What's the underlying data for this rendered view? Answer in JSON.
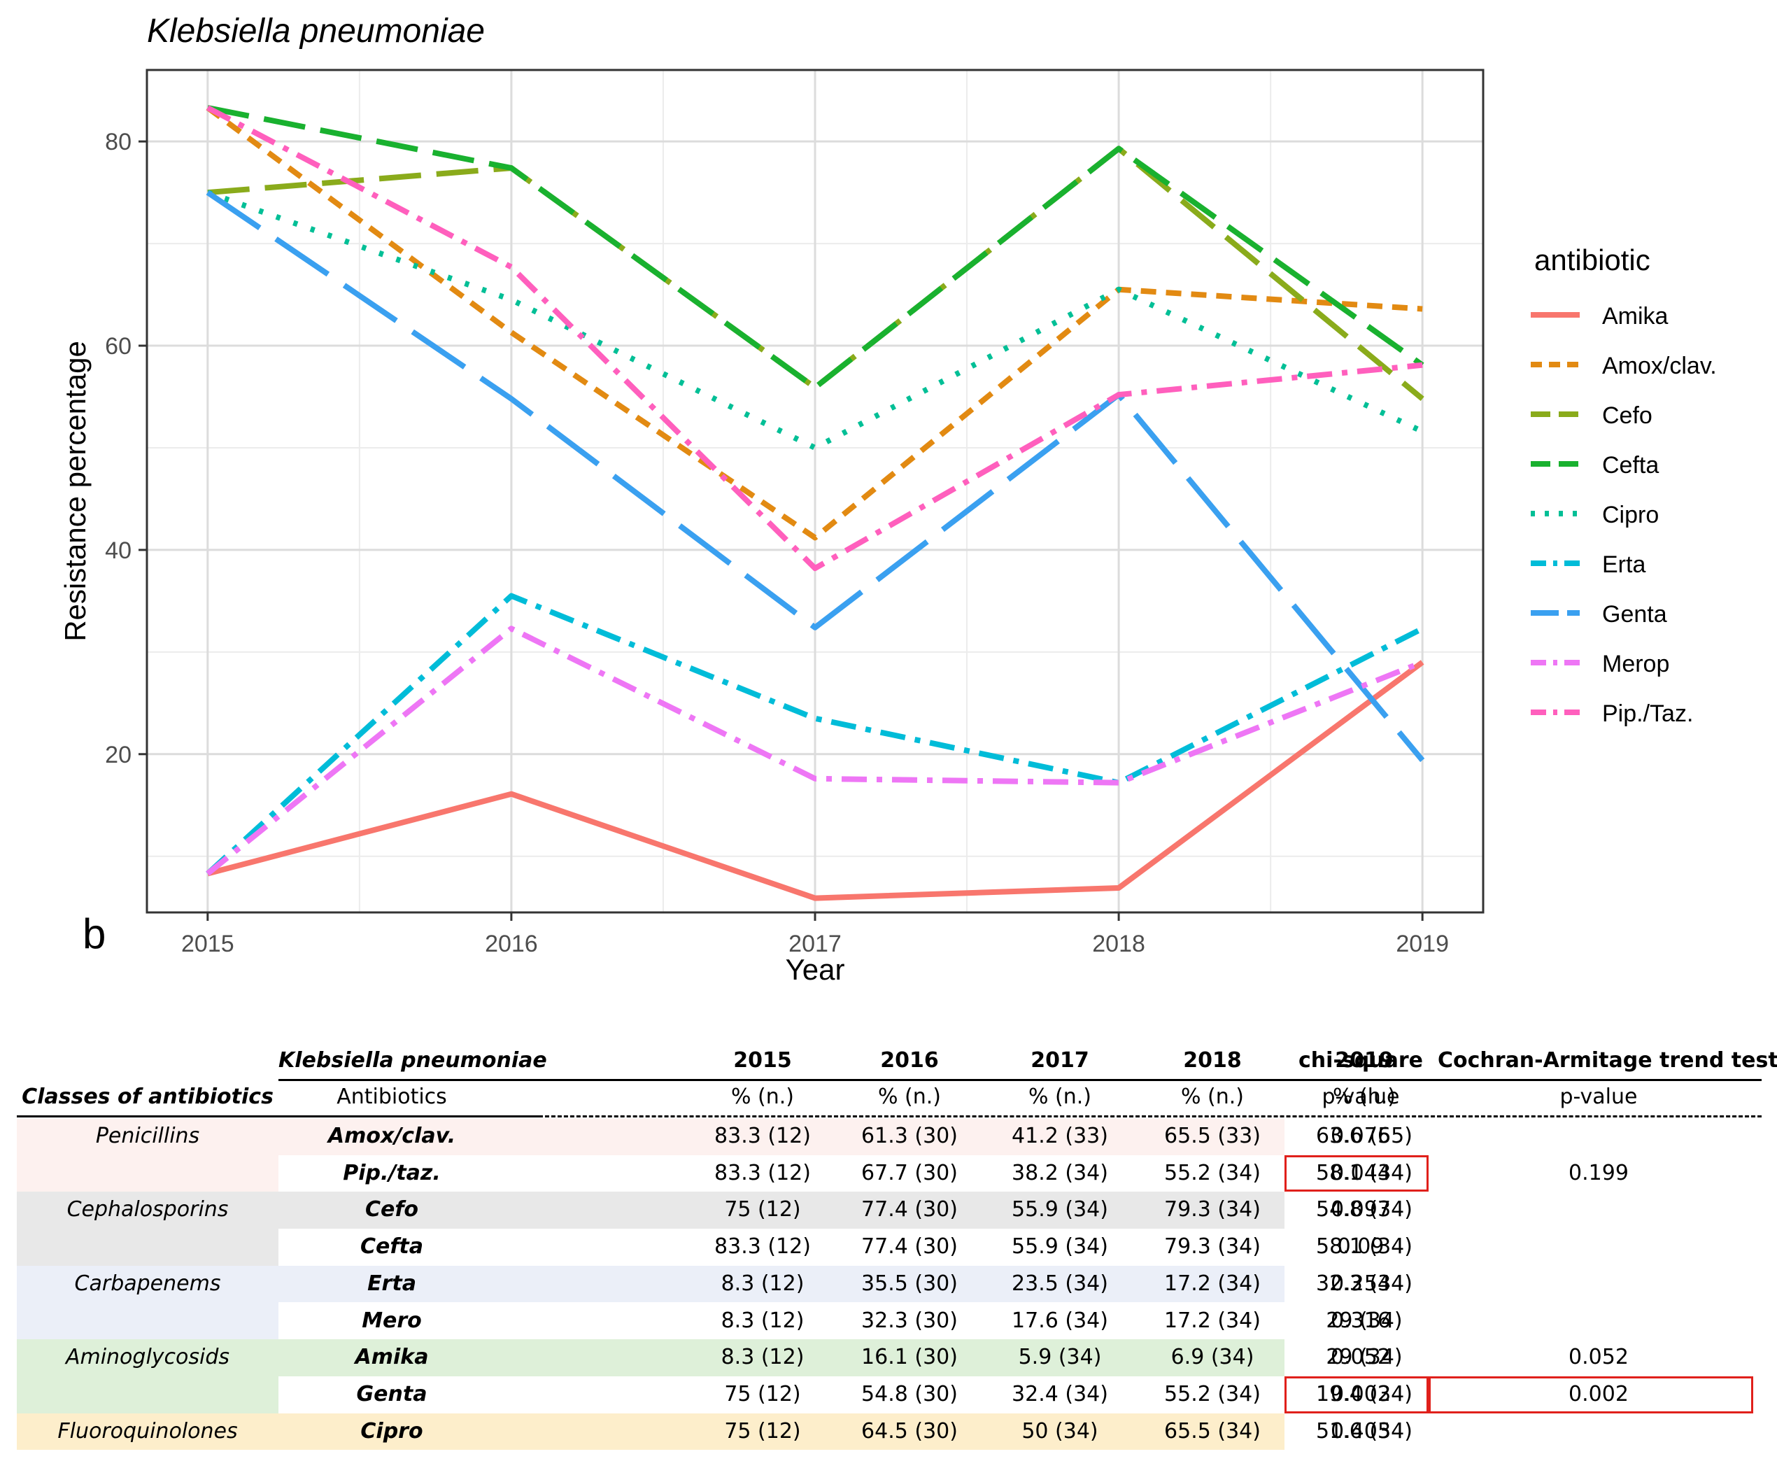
{
  "chart_data": {
    "type": "line",
    "title": "Klebsiella pneumoniae",
    "xlabel": "Year",
    "ylabel": "Resistance percentage",
    "x": [
      2015,
      2016,
      2017,
      2018,
      2019
    ],
    "xlim": [
      2014.8,
      2019.2
    ],
    "ylim": [
      4.5,
      87
    ],
    "yticks": [
      20,
      40,
      60,
      80
    ],
    "grid": true,
    "legend_title": "antibiotic",
    "legend_position": "right",
    "series": [
      {
        "name": "Amika",
        "values": [
          8.3,
          16.1,
          5.9,
          6.9,
          29
        ],
        "color": "#f8766d",
        "dash": "solid"
      },
      {
        "name": "Amox/clav.",
        "values": [
          83.3,
          61.3,
          41.2,
          65.5,
          63.6
        ],
        "color": "#e28a12",
        "dash": "short"
      },
      {
        "name": "Cefo",
        "values": [
          75,
          77.4,
          55.9,
          79.3,
          54.8
        ],
        "color": "#8aab1b",
        "dash": "long"
      },
      {
        "name": "Cefta",
        "values": [
          83.3,
          77.4,
          55.9,
          79.3,
          58.1
        ],
        "color": "#19b12f",
        "dash": "long"
      },
      {
        "name": "Cipro",
        "values": [
          75,
          64.5,
          50,
          65.5,
          51.6
        ],
        "color": "#00bf96",
        "dash": "dot"
      },
      {
        "name": "Erta",
        "values": [
          8.3,
          35.5,
          23.5,
          17.2,
          32.3
        ],
        "color": "#00bcd8",
        "dash": "dashdot"
      },
      {
        "name": "Genta",
        "values": [
          75,
          54.8,
          32.4,
          55.2,
          19.4
        ],
        "color": "#3aa0f0",
        "dash": "longdash"
      },
      {
        "name": "Merop",
        "values": [
          8.3,
          32.3,
          17.6,
          17.2,
          29
        ],
        "color": "#ee76f5",
        "dash": "dashdot"
      },
      {
        "name": "Pip./Taz.",
        "values": [
          83.3,
          67.7,
          38.2,
          55.2,
          58.1
        ],
        "color": "#ff5fbd",
        "dash": "dashdot"
      }
    ]
  },
  "panel_label": "b",
  "table": {
    "title": "Klebsiella pneumoniae",
    "classes_header": "Classes of antibiotics",
    "antibiotics_header": "Antibiotics",
    "years": [
      "2015",
      "2016",
      "2017",
      "2018",
      "2019"
    ],
    "year_subheader": "% (n.)",
    "chi_header": "chi-square",
    "trend_header": "Cochran-Armitage trend test",
    "pvalue_label": "p-value",
    "groups": [
      {
        "name": "Penicillins",
        "color": "#fdf1ef"
      },
      {
        "name": "Cephalosporins",
        "color": "#e8e8e8"
      },
      {
        "name": "Carbapenems",
        "color": "#ebeff8"
      },
      {
        "name": "Aminoglycosids",
        "color": "#def0d9"
      },
      {
        "name": "Fluoroquinolones",
        "color": "#fdeecb"
      }
    ],
    "rows": [
      {
        "antibiotic": "Amox/clav.",
        "values": [
          "83.3 (12)",
          "61.3 (30)",
          "41.2 (33)",
          "65.5 (33)",
          "63.6 (55)"
        ],
        "chi": "0.076",
        "trend": ""
      },
      {
        "antibiotic": "Pip./taz.",
        "values": [
          "83.3 (12)",
          "67.7 (30)",
          "38.2 (34)",
          "55.2 (34)",
          "58.1 (34)"
        ],
        "chi": "0.044",
        "trend": "0.199"
      },
      {
        "antibiotic": "Cefo",
        "values": [
          "75 (12)",
          "77.4 (30)",
          "55.9 (34)",
          "79.3 (34)",
          "54.8 (34)"
        ],
        "chi": "0.097",
        "trend": ""
      },
      {
        "antibiotic": "Cefta",
        "values": [
          "83.3 (12)",
          "77.4 (30)",
          "55.9 (34)",
          "79.3 (34)",
          "58.1 (34)"
        ],
        "chi": "0.09",
        "trend": ""
      },
      {
        "antibiotic": "Erta",
        "values": [
          "8.3 (12)",
          "35.5 (30)",
          "23.5 (34)",
          "17.2 (34)",
          "32.3 (34)"
        ],
        "chi": "0.254",
        "trend": ""
      },
      {
        "antibiotic": "Mero",
        "values": [
          "8.3 (12)",
          "32.3 (30)",
          "17.6 (34)",
          "17.2 (34)",
          "29 (34)"
        ],
        "chi": "0.316",
        "trend": ""
      },
      {
        "antibiotic": "Amika",
        "values": [
          "8.3 (12)",
          "16.1 (30)",
          "5.9 (34)",
          "6.9 (34)",
          "29 (34)"
        ],
        "chi": "0.052",
        "trend": "0.052"
      },
      {
        "antibiotic": "Genta",
        "values": [
          "75 (12)",
          "54.8 (30)",
          "32.4 (34)",
          "55.2 (34)",
          "19.4 (34)"
        ],
        "chi": "0.002",
        "trend": "0.002"
      },
      {
        "antibiotic": "Cipro",
        "values": [
          "75 (12)",
          "64.5 (30)",
          "50 (34)",
          "65.5 (34)",
          "51.6 (34)"
        ],
        "chi": "0.405",
        "trend": ""
      }
    ]
  }
}
